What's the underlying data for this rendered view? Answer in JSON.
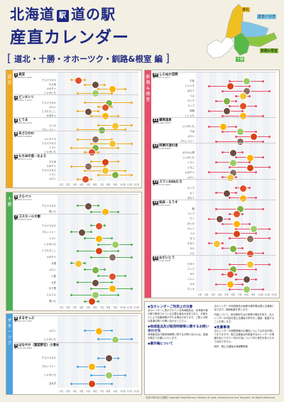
{
  "header": {
    "title_line1_a": "北海道",
    "title_logo": "駅",
    "title_line1_b": "道の駅",
    "title_line2": "産直カレンダー",
    "subtitle": "道北・十勝・オホーツク・釧路&根室",
    "subtitle_suffix": "編",
    "bracket_open": "[",
    "bracket_close": "]"
  },
  "map": {
    "regions": [
      "道北",
      "オホーツク",
      "釧路&根室",
      "十勝"
    ],
    "colors": {
      "道北": "#f0c020",
      "オホーツク": "#7ec4e6",
      "釧路&根室": "#8cc63f",
      "十勝": "#58b848",
      "other": "#ffffff"
    }
  },
  "months": [
    "1月",
    "2月",
    "3月",
    "4月",
    "5月",
    "6月",
    "7月",
    "8月",
    "9月",
    "10月",
    "11月",
    "12月"
  ],
  "panels": [
    {
      "key": "dohoku",
      "band_label": "道北",
      "color": "#f0a91e",
      "stations": [
        {
          "num": "1",
          "name": "美深",
          "tel": "☎01656-2-1000",
          "products": [
            "アスパラガス",
            "もち米",
            "カボチャ",
            "じゃがいも"
          ]
        },
        {
          "num": "2",
          "name": "ピンネシリ",
          "tel": "☎01654-7-2211",
          "products": [
            "アスパラガス",
            "メロン",
            "とうもろこし",
            "かぼちゃ"
          ]
        },
        {
          "num": "3",
          "name": "とうま",
          "tel": "☎0166-84-2010",
          "products": [
            "スイカ",
            "ブロッコリー"
          ]
        },
        {
          "num": "4",
          "name": "あさひかわ",
          "tel": "☎0166-53-8000",
          "products": [
            "ジャガイモ",
            "アスパラガス",
            "トマト",
            "じゃがいも"
          ]
        },
        {
          "num": "5",
          "name": "もち米の里☆なよろ",
          "tel": "☎01654-2-1111",
          "products": [
            "もち米",
            "カボチャ",
            "アスパラガス",
            "トマト",
            "メロン"
          ]
        }
      ]
    },
    {
      "key": "tokachi",
      "band_label": "十勝",
      "color": "#4caf50",
      "stations": [
        {
          "num": "6",
          "name": "さらべつ",
          "tel": "☎0155-52-3311",
          "products": [
            "アスパラガス",
            "長いも"
          ]
        },
        {
          "num": "7",
          "name": "コスモール大樹",
          "tel": "☎01558-6-3232",
          "products": [
            "アスパラガス",
            "ブロッコリー",
            "トマト",
            "じゃがいも",
            "とうもろこし",
            "カボチャ",
            "大根",
            "メロン",
            "小麦",
            "大豆",
            "ゆり根",
            "にんじん",
            "長いも"
          ]
        }
      ]
    },
    {
      "key": "okhotsk",
      "band_label": "オホーツク",
      "color": "#4aa3df",
      "stations": [
        {
          "num": "8",
          "name": "まるせっぷ",
          "tel": "☎0157-47-2355",
          "products": [
            "メロン",
            "じゃがいも"
          ]
        },
        {
          "num": "9",
          "name": "はなやか（葉菜野花）小清水",
          "tel": "☎0152-62-4500",
          "products": [
            "アスパラガス",
            "ブロッコリー",
            "じゃがいも",
            "玉ねぎ"
          ]
        }
      ]
    },
    {
      "key": "kushiro",
      "band_label": "釧路&根室",
      "color": "#e84e6a",
      "stations": [
        {
          "num": "10",
          "name": "しらぬか恋問",
          "tel": "☎01547-5-3317",
          "products": [
            "牛乳",
            "シシャモ",
            "ほたて",
            "つぶ",
            "サンマ",
            "コンブ",
            "秋鮭",
            "ししゃも"
          ]
        },
        {
          "num": "11",
          "name": "摩周温泉",
          "tel": "☎015-482-2500",
          "products": [
            "じゃがいも",
            "そば",
            "メロン",
            "ブロッコリー"
          ]
        },
        {
          "num": "12",
          "name": "阿寒丹頂の里",
          "tel": "☎0154-66-2969",
          "products": [
            "ほうれん草",
            "じゃがいも",
            "トマト",
            "いちご",
            "カボチャ",
            "メロン"
          ]
        },
        {
          "num": "13",
          "name": "スワン44ねむろ",
          "tel": "☎0153-25-3055",
          "products": [
            "サンマ",
            "カニ",
            "ほたて"
          ]
        },
        {
          "num": "14",
          "name": "知床・らうす",
          "tel": "☎0153-87-5151",
          "products": [
            "鮭",
            "コンブ",
            "ウニ",
            "ほっけ",
            "カレイ",
            "イカ",
            "タコ",
            "ホタテ",
            "サケ",
            "エビ"
          ]
        },
        {
          "num": "15",
          "name": "おだいとう",
          "tel": "☎0153-82-2208",
          "products": [
            "ホタテ",
            "コンブ",
            "サケ",
            "ニシン",
            "カキ",
            "ホッキ"
          ]
        }
      ]
    }
  ],
  "notes": {
    "sections": [
      {
        "heading": "◆当カレンダーご利用上の注意",
        "text": "当カレンダーに表示されている地域産品は、北海道の道の駅で販売されている主要な産品の目安であり、天候などにより収穫時期がずれる場合があります。ご購入の際は各道の駅へお問い合わせください。"
      },
      {
        "heading": "◆地域産品及び販売時期等に関するお問い合わせ先",
        "text": "地域産品及び販売時期等に関するお問い合わせは、各道の駅までお願いいたします。"
      },
      {
        "heading": "◆著作権について",
        "text": "当カレンダーの地域産品の画像の著作権は国土交通省にあります。無断転載を禁じます。"
      },
      {
        "heading": "",
        "text": "内容について、私的使用又は引用等の場合を除き、当カレンダーの内容を国土交通省の許可なく複製・転載することを禁じます。"
      },
      {
        "heading": "◆免責事項",
        "text": "当カレンダーの掲載情報の正確性については万全を期しておりますが、国土交通省は利用者が当カレンダーの情報を用いて行う一切の行為について何ら責任を負うものではありません。"
      }
    ],
    "contact": "制作：国土交通省北海道開発局"
  },
  "footer": "平成29年4月1日現在  Copyright Road Bureau, Ministry of Land, Infrastructure and Transport. All Rights Reserved."
}
